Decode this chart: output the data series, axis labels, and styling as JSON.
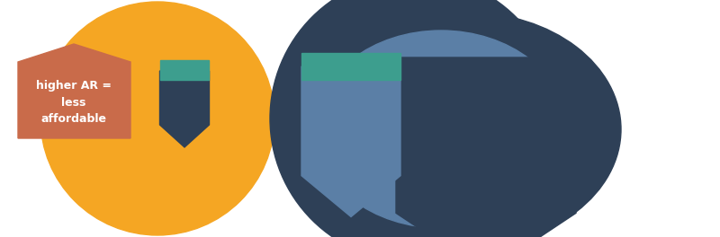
{
  "bg_color": "#ffffff",
  "orange_color": "#F5A623",
  "dark_blue_color": "#2E4057",
  "steel_blue_color": "#5B7FA6",
  "teal_color": "#3D9E8E",
  "salmon_color": "#C96B4A",
  "label_text_lines": [
    "higher AR =",
    "less",
    "affordable"
  ],
  "label_bg": "#C96B4A",
  "label_text_color": "#ffffff",
  "label_fontsize": 9,
  "label_fontweight": "bold"
}
